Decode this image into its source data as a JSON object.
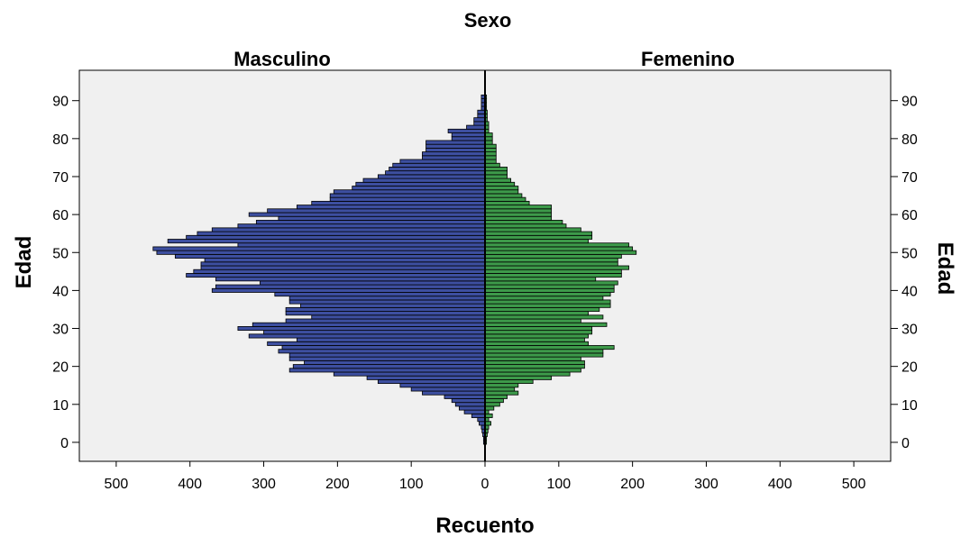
{
  "colors": {
    "background": "#ffffff",
    "plot_background": "#f0f0f0",
    "male_fill": "#3d4fa0",
    "female_fill": "#3d9a4a",
    "bar_stroke": "#000000"
  },
  "chart_data": {
    "type": "bar",
    "orientation": "horizontal",
    "subtype": "population-pyramid",
    "title": "Sexo",
    "xlabel": "Recuento",
    "ylabel": "Edad",
    "ylabel_right": "Edad",
    "grid": false,
    "xlim_per_side": [
      0,
      550
    ],
    "x_ticks": [
      0,
      100,
      200,
      300,
      400,
      500
    ],
    "ylim": [
      -5,
      98
    ],
    "y_ticks": [
      0,
      10,
      20,
      30,
      40,
      50,
      60,
      70,
      80,
      90
    ],
    "ages": [
      0,
      1,
      2,
      3,
      4,
      5,
      6,
      7,
      8,
      9,
      10,
      11,
      12,
      13,
      14,
      15,
      16,
      17,
      18,
      19,
      20,
      21,
      22,
      23,
      24,
      25,
      26,
      27,
      28,
      29,
      30,
      31,
      32,
      33,
      34,
      35,
      36,
      37,
      38,
      39,
      40,
      41,
      42,
      43,
      44,
      45,
      46,
      47,
      48,
      49,
      50,
      51,
      52,
      53,
      54,
      55,
      56,
      57,
      58,
      59,
      60,
      61,
      62,
      63,
      64,
      65,
      66,
      67,
      68,
      69,
      70,
      71,
      72,
      73,
      74,
      75,
      76,
      77,
      78,
      79,
      80,
      81,
      82,
      83,
      84,
      85,
      86,
      87,
      88,
      89,
      90,
      91
    ],
    "series": [
      {
        "name": "Masculino",
        "values": [
          2,
          2,
          3,
          4,
          5,
          8,
          10,
          18,
          28,
          35,
          40,
          45,
          55,
          85,
          100,
          115,
          145,
          160,
          205,
          265,
          260,
          245,
          265,
          265,
          280,
          275,
          295,
          255,
          320,
          300,
          335,
          315,
          270,
          235,
          270,
          270,
          250,
          265,
          265,
          285,
          370,
          365,
          305,
          365,
          405,
          395,
          385,
          385,
          380,
          420,
          445,
          450,
          335,
          430,
          405,
          390,
          370,
          335,
          310,
          280,
          320,
          295,
          255,
          235,
          210,
          210,
          205,
          180,
          175,
          165,
          145,
          135,
          130,
          125,
          115,
          85,
          85,
          80,
          80,
          80,
          45,
          45,
          50,
          25,
          15,
          15,
          10,
          10,
          5,
          5,
          5,
          5
        ]
      },
      {
        "name": "Femenino",
        "values": [
          2,
          2,
          3,
          4,
          5,
          8,
          5,
          10,
          5,
          12,
          20,
          25,
          30,
          45,
          40,
          45,
          65,
          90,
          115,
          130,
          135,
          135,
          130,
          160,
          160,
          175,
          140,
          135,
          140,
          145,
          145,
          165,
          130,
          160,
          140,
          155,
          170,
          170,
          160,
          170,
          175,
          175,
          180,
          150,
          185,
          185,
          195,
          180,
          180,
          185,
          205,
          200,
          195,
          140,
          145,
          145,
          130,
          110,
          105,
          90,
          90,
          90,
          90,
          60,
          55,
          50,
          45,
          45,
          40,
          35,
          30,
          30,
          30,
          20,
          15,
          15,
          15,
          15,
          15,
          10,
          10,
          10,
          5,
          5,
          5,
          3,
          3,
          3,
          2,
          2,
          2,
          2
        ]
      }
    ]
  }
}
